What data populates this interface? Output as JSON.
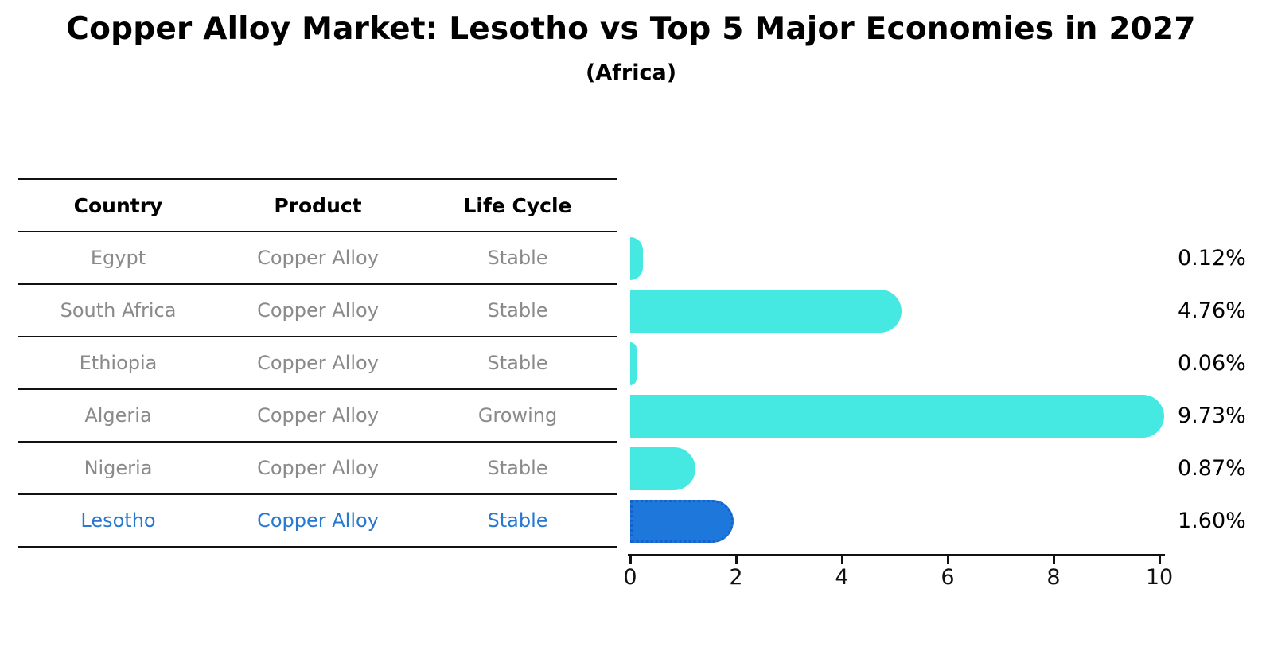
{
  "title": "Copper Alloy Market: Lesotho vs Top 5 Major Economies in 2027",
  "subtitle": "(Africa)",
  "table": {
    "columns": [
      "Country",
      "Product",
      "Life Cycle"
    ],
    "rows": [
      {
        "country": "Egypt",
        "product": "Copper Alloy",
        "life_cycle": "Stable",
        "highlight": false
      },
      {
        "country": "South Africa",
        "product": "Copper Alloy",
        "life_cycle": "Stable",
        "highlight": false
      },
      {
        "country": "Ethiopia",
        "product": "Copper Alloy",
        "life_cycle": "Stable",
        "highlight": false
      },
      {
        "country": "Algeria",
        "product": "Copper Alloy",
        "life_cycle": "Growing",
        "highlight": false
      },
      {
        "country": "Nigeria",
        "product": "Copper Alloy",
        "life_cycle": "Stable",
        "highlight": false
      },
      {
        "country": "Lesotho",
        "product": "Copper Alloy",
        "life_cycle": "Stable",
        "highlight": true
      }
    ]
  },
  "chart_data": {
    "type": "bar",
    "orientation": "horizontal",
    "title": "Copper Alloy Market: Lesotho vs Top 5 Major Economies in 2027",
    "subtitle": "(Africa)",
    "categories": [
      "Egypt",
      "South Africa",
      "Ethiopia",
      "Algeria",
      "Nigeria",
      "Lesotho"
    ],
    "values": [
      0.12,
      4.76,
      0.06,
      9.73,
      0.87,
      1.6
    ],
    "value_labels": [
      "0.12%",
      "4.76%",
      "0.06%",
      "9.73%",
      "0.87%",
      "1.60%"
    ],
    "xlim": [
      0,
      10
    ],
    "x_ticks": [
      "0",
      "2",
      "4",
      "6",
      "8",
      "10"
    ],
    "grid": false,
    "legend": "none",
    "highlight_index": 5,
    "colors": {
      "bar": "#46E8E2",
      "highlight_bar": "#1E78DC",
      "highlight_bar_edge": "#1560CF",
      "highlight_text": "#2878CE",
      "text": "#000000",
      "muted_text": "#8A8A8A"
    }
  }
}
